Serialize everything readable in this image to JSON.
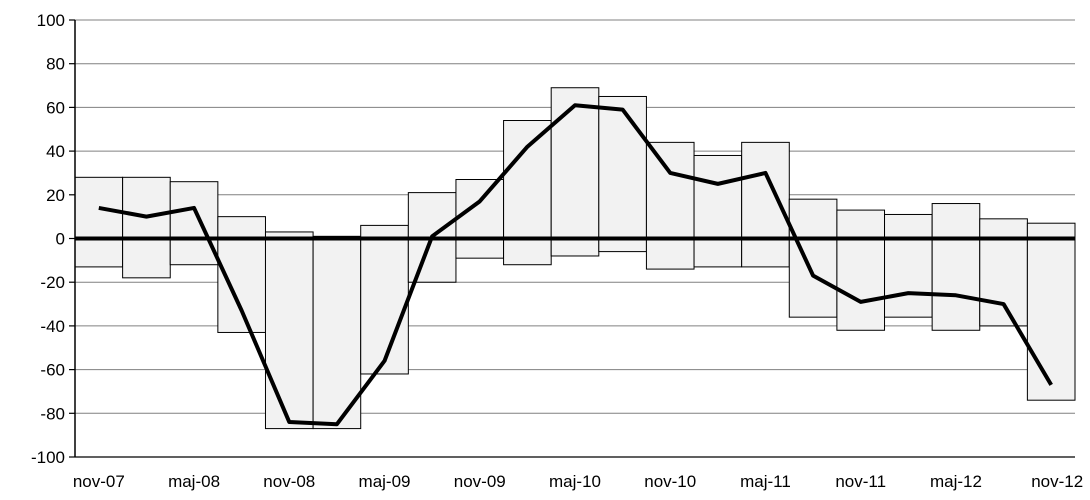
{
  "chart_data": {
    "type": "bar",
    "title": "",
    "xlabel": "",
    "ylabel": "",
    "ylim": [
      -100,
      100
    ],
    "yticks": [
      100,
      80,
      60,
      40,
      20,
      0,
      -20,
      -40,
      -60,
      -80,
      -100
    ],
    "x_tick_labels": [
      "nov-07",
      "maj-08",
      "nov-08",
      "maj-09",
      "nov-09",
      "maj-10",
      "nov-10",
      "maj-11",
      "nov-11",
      "maj-12",
      "nov-12"
    ],
    "grid": "horizontal",
    "legend": "none",
    "range_bars": [
      {
        "low": -13,
        "high": 28
      },
      {
        "low": -18,
        "high": 28
      },
      {
        "low": -12,
        "high": 26
      },
      {
        "low": -43,
        "high": 10
      },
      {
        "low": -87,
        "high": 3
      },
      {
        "low": -87,
        "high": 1
      },
      {
        "low": -62,
        "high": 6
      },
      {
        "low": -20,
        "high": 21
      },
      {
        "low": -9,
        "high": 27
      },
      {
        "low": -12,
        "high": 54
      },
      {
        "low": -8,
        "high": 69
      },
      {
        "low": -6,
        "high": 65
      },
      {
        "low": -14,
        "high": 44
      },
      {
        "low": -13,
        "high": 38
      },
      {
        "low": -13,
        "high": 44
      },
      {
        "low": -36,
        "high": 18
      },
      {
        "low": -42,
        "high": 13
      },
      {
        "low": -36,
        "high": 11
      },
      {
        "low": -42,
        "high": 16
      },
      {
        "low": -40,
        "high": 9
      },
      {
        "low": -74,
        "high": 7
      }
    ],
    "line_values": [
      14,
      10,
      14,
      -33,
      -84,
      -85,
      -56,
      1,
      17,
      42,
      61,
      59,
      30,
      25,
      30,
      -17,
      -29,
      -25,
      -26,
      -30,
      -67
    ],
    "colors": {
      "bar_fill": "#f2f2f2",
      "bar_stroke": "#000000",
      "line": "#000000",
      "grid": "#808080",
      "zero_line": "#000000"
    }
  }
}
